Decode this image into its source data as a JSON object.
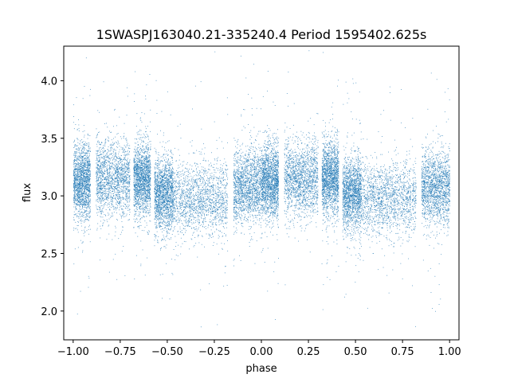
{
  "chart_data": {
    "type": "scatter",
    "title": "1SWASPJ163040.21-335240.4 Period 1595402.625s",
    "xlabel": "phase",
    "ylabel": "flux",
    "xlim": [
      -1.05,
      1.05
    ],
    "ylim": [
      1.75,
      4.3
    ],
    "grid": false,
    "marker_color": "#1f77b4",
    "xticks": [
      -1.0,
      -0.75,
      -0.5,
      -0.25,
      0.0,
      0.25,
      0.5,
      0.75,
      1.0
    ],
    "xtick_labels": [
      "−1.00",
      "−0.75",
      "−0.50",
      "−0.25",
      "0.00",
      "0.25",
      "0.50",
      "0.75",
      "1.00"
    ],
    "yticks": [
      2.0,
      2.5,
      3.0,
      3.5,
      4.0
    ],
    "ytick_labels": [
      "2.0",
      "2.5",
      "3.0",
      "3.5",
      "4.0"
    ],
    "x_range": [
      -1.0,
      1.0
    ],
    "flux_baseline": 3.05,
    "flux_min": 1.85,
    "flux_max": 4.27,
    "phase_bands": [
      {
        "x": [
          -1.0,
          -0.91
        ],
        "center": 3.12
      },
      {
        "x": [
          -0.88,
          -0.7
        ],
        "center": 3.15
      },
      {
        "x": [
          -0.68,
          -0.59
        ],
        "center": 3.15
      },
      {
        "x": [
          -0.57,
          -0.47
        ],
        "center": 3.02
      },
      {
        "x": [
          -0.47,
          -0.18
        ],
        "center": 2.98
      },
      {
        "x": [
          -0.15,
          0.0
        ],
        "center": 3.08
      },
      {
        "x": [
          0.0,
          0.09
        ],
        "center": 3.12
      },
      {
        "x": [
          0.12,
          0.3
        ],
        "center": 3.15
      },
      {
        "x": [
          0.32,
          0.41
        ],
        "center": 3.15
      },
      {
        "x": [
          0.43,
          0.53
        ],
        "center": 3.02
      },
      {
        "x": [
          0.53,
          0.82
        ],
        "center": 2.98
      },
      {
        "x": [
          0.85,
          1.0
        ],
        "center": 3.08
      }
    ]
  }
}
